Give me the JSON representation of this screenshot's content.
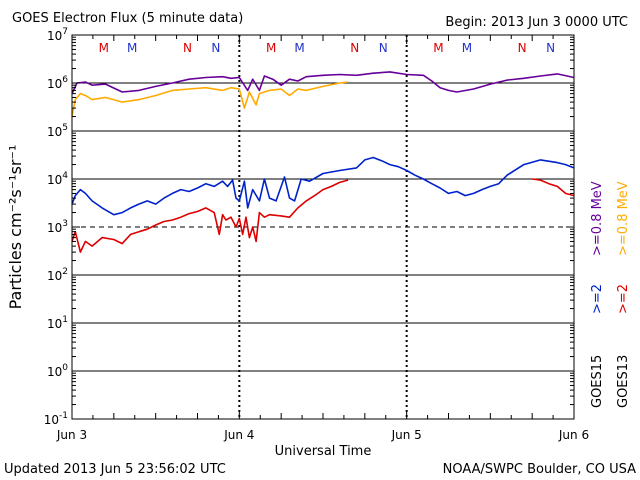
{
  "chart_data": {
    "type": "line",
    "title": "GOES Electron Flux (5 minute data)",
    "begin_label": "Begin: 2013 Jun 3 0000 UTC",
    "xlabel": "Universal Time",
    "ylabel": "Particles cm⁻²s⁻¹sr⁻¹",
    "yscale": "log",
    "ylim": [
      0.1,
      10000000
    ],
    "xlim": [
      0,
      3
    ],
    "x_unit": "days since 2013 Jun 3 0000 UTC",
    "x_tick_labels": [
      {
        "x": 0,
        "label": "Jun 3"
      },
      {
        "x": 1,
        "label": "Jun 4"
      },
      {
        "x": 2,
        "label": "Jun 5"
      },
      {
        "x": 3,
        "label": "Jun 6"
      }
    ],
    "y_tick_labels": [
      {
        "value": 10000000,
        "base": "10",
        "exp": "7"
      },
      {
        "value": 1000000,
        "base": "10",
        "exp": "6"
      },
      {
        "value": 100000,
        "base": "10",
        "exp": "5"
      },
      {
        "value": 10000,
        "base": "10",
        "exp": "4"
      },
      {
        "value": 1000,
        "base": "10",
        "exp": "3"
      },
      {
        "value": 100,
        "base": "10",
        "exp": "2"
      },
      {
        "value": 10,
        "base": "10",
        "exp": "1"
      },
      {
        "value": 1,
        "base": "10",
        "exp": "0"
      },
      {
        "value": 0.1,
        "base": "10",
        "exp": "-1"
      }
    ],
    "solid_gridlines": [
      1000000,
      100000,
      10000,
      100,
      10,
      1
    ],
    "dashed_threshold": 1000,
    "midnight_markers": [
      1,
      2
    ],
    "satellite_markers": [
      {
        "x": 0.19,
        "label": "M",
        "color": "#dd0000"
      },
      {
        "x": 0.36,
        "label": "M",
        "color": "#2233cc"
      },
      {
        "x": 0.69,
        "label": "N",
        "color": "#dd0000"
      },
      {
        "x": 0.86,
        "label": "N",
        "color": "#2233cc"
      },
      {
        "x": 1.19,
        "label": "M",
        "color": "#dd0000"
      },
      {
        "x": 1.36,
        "label": "M",
        "color": "#2233cc"
      },
      {
        "x": 1.69,
        "label": "N",
        "color": "#dd0000"
      },
      {
        "x": 1.86,
        "label": "N",
        "color": "#2233cc"
      },
      {
        "x": 2.19,
        "label": "M",
        "color": "#dd0000"
      },
      {
        "x": 2.36,
        "label": "M",
        "color": "#2233cc"
      },
      {
        "x": 2.69,
        "label": "N",
        "color": "#dd0000"
      },
      {
        "x": 2.86,
        "label": "N",
        "color": "#2233cc"
      }
    ],
    "series": [
      {
        "name": "GOES15 >=0.8 MeV",
        "color": "#660099",
        "points": [
          [
            0,
            600000
          ],
          [
            0.03,
            1000000
          ],
          [
            0.08,
            1050000
          ],
          [
            0.12,
            900000
          ],
          [
            0.2,
            950000
          ],
          [
            0.3,
            650000
          ],
          [
            0.4,
            700000
          ],
          [
            0.5,
            850000
          ],
          [
            0.6,
            1000000
          ],
          [
            0.7,
            1200000
          ],
          [
            0.8,
            1300000
          ],
          [
            0.9,
            1350000
          ],
          [
            0.95,
            1250000
          ],
          [
            1.0,
            1300000
          ],
          [
            1.05,
            700000
          ],
          [
            1.08,
            1200000
          ],
          [
            1.12,
            700000
          ],
          [
            1.15,
            1400000
          ],
          [
            1.2,
            1200000
          ],
          [
            1.25,
            900000
          ],
          [
            1.3,
            1200000
          ],
          [
            1.35,
            1100000
          ],
          [
            1.4,
            1350000
          ],
          [
            1.5,
            1450000
          ],
          [
            1.6,
            1500000
          ],
          [
            1.7,
            1450000
          ],
          [
            1.8,
            1600000
          ],
          [
            1.9,
            1700000
          ],
          [
            2.0,
            1500000
          ],
          [
            2.1,
            1450000
          ],
          [
            2.15,
            1100000
          ],
          [
            2.2,
            800000
          ],
          [
            2.25,
            700000
          ],
          [
            2.3,
            650000
          ],
          [
            2.4,
            750000
          ],
          [
            2.5,
            950000
          ],
          [
            2.6,
            1150000
          ],
          [
            2.7,
            1250000
          ],
          [
            2.8,
            1400000
          ],
          [
            2.9,
            1550000
          ],
          [
            3.0,
            1300000
          ]
        ]
      },
      {
        "name": "GOES13 >=0.8 MeV",
        "color": "#ffaa00",
        "points": [
          [
            0,
            200000
          ],
          [
            0.02,
            450000
          ],
          [
            0.05,
            600000
          ],
          [
            0.08,
            550000
          ],
          [
            0.12,
            450000
          ],
          [
            0.2,
            500000
          ],
          [
            0.3,
            400000
          ],
          [
            0.4,
            450000
          ],
          [
            0.5,
            550000
          ],
          [
            0.6,
            700000
          ],
          [
            0.7,
            750000
          ],
          [
            0.8,
            800000
          ],
          [
            0.9,
            700000
          ],
          [
            0.95,
            800000
          ],
          [
            1.0,
            750000
          ],
          [
            1.03,
            300000
          ],
          [
            1.06,
            650000
          ],
          [
            1.1,
            350000
          ],
          [
            1.12,
            600000
          ],
          [
            1.18,
            700000
          ],
          [
            1.25,
            750000
          ],
          [
            1.3,
            550000
          ],
          [
            1.35,
            750000
          ],
          [
            1.4,
            700000
          ],
          [
            1.5,
            850000
          ],
          [
            1.6,
            1000000
          ],
          [
            1.65,
            1050000
          ]
        ]
      },
      {
        "name": "GOES15 >=2 MeV",
        "color": "#0022cc",
        "points": [
          [
            0,
            3000
          ],
          [
            0.02,
            4500
          ],
          [
            0.05,
            6000
          ],
          [
            0.08,
            5000
          ],
          [
            0.12,
            3500
          ],
          [
            0.18,
            2500
          ],
          [
            0.25,
            1800
          ],
          [
            0.3,
            2000
          ],
          [
            0.35,
            2500
          ],
          [
            0.4,
            3000
          ],
          [
            0.45,
            3500
          ],
          [
            0.5,
            3000
          ],
          [
            0.55,
            4000
          ],
          [
            0.6,
            5000
          ],
          [
            0.65,
            6000
          ],
          [
            0.7,
            5500
          ],
          [
            0.75,
            6500
          ],
          [
            0.8,
            8000
          ],
          [
            0.85,
            7000
          ],
          [
            0.9,
            9000
          ],
          [
            0.93,
            7000
          ],
          [
            0.96,
            9500
          ],
          [
            0.98,
            4000
          ],
          [
            1.0,
            3500
          ],
          [
            1.03,
            9000
          ],
          [
            1.05,
            2500
          ],
          [
            1.08,
            6000
          ],
          [
            1.12,
            3500
          ],
          [
            1.15,
            10000
          ],
          [
            1.18,
            4000
          ],
          [
            1.22,
            3500
          ],
          [
            1.27,
            11000
          ],
          [
            1.3,
            4000
          ],
          [
            1.33,
            3500
          ],
          [
            1.37,
            10000
          ],
          [
            1.42,
            9000
          ],
          [
            1.5,
            13000
          ],
          [
            1.6,
            15000
          ],
          [
            1.7,
            17000
          ],
          [
            1.75,
            25000
          ],
          [
            1.8,
            28000
          ],
          [
            1.85,
            24000
          ],
          [
            1.9,
            20000
          ],
          [
            1.95,
            18000
          ],
          [
            2.0,
            15000
          ],
          [
            2.05,
            12000
          ],
          [
            2.1,
            10000
          ],
          [
            2.15,
            8000
          ],
          [
            2.2,
            6500
          ],
          [
            2.25,
            5000
          ],
          [
            2.3,
            5500
          ],
          [
            2.35,
            4500
          ],
          [
            2.4,
            5000
          ],
          [
            2.45,
            6000
          ],
          [
            2.5,
            7000
          ],
          [
            2.55,
            8000
          ],
          [
            2.6,
            12000
          ],
          [
            2.7,
            20000
          ],
          [
            2.8,
            25000
          ],
          [
            2.9,
            22000
          ],
          [
            2.95,
            20000
          ],
          [
            3.0,
            17000
          ]
        ]
      },
      {
        "name": "GOES13 >=2 MeV",
        "color": "#dd0000",
        "points": [
          [
            0,
            500
          ],
          [
            0.02,
            800
          ],
          [
            0.05,
            300
          ],
          [
            0.08,
            500
          ],
          [
            0.12,
            400
          ],
          [
            0.18,
            600
          ],
          [
            0.25,
            550
          ],
          [
            0.3,
            450
          ],
          [
            0.35,
            700
          ],
          [
            0.4,
            800
          ],
          [
            0.45,
            900
          ],
          [
            0.5,
            1100
          ],
          [
            0.55,
            1300
          ],
          [
            0.6,
            1400
          ],
          [
            0.65,
            1600
          ],
          [
            0.7,
            1900
          ],
          [
            0.75,
            2100
          ],
          [
            0.8,
            2500
          ],
          [
            0.85,
            2000
          ],
          [
            0.88,
            700
          ],
          [
            0.9,
            1800
          ],
          [
            0.92,
            1400
          ],
          [
            0.95,
            1600
          ],
          [
            0.98,
            1000
          ],
          [
            1.0,
            1500
          ],
          [
            1.02,
            700
          ],
          [
            1.04,
            1600
          ],
          [
            1.06,
            600
          ],
          [
            1.08,
            1000
          ],
          [
            1.1,
            500
          ],
          [
            1.12,
            2000
          ],
          [
            1.15,
            1600
          ],
          [
            1.18,
            1800
          ],
          [
            1.25,
            1700
          ],
          [
            1.3,
            1600
          ],
          [
            1.35,
            2500
          ],
          [
            1.4,
            3500
          ],
          [
            1.45,
            4500
          ],
          [
            1.5,
            6000
          ],
          [
            1.55,
            7000
          ],
          [
            1.6,
            8500
          ],
          [
            1.65,
            9500
          ]
        ],
        "segment2": [
          [
            2.75,
            10000
          ],
          [
            2.8,
            9500
          ],
          [
            2.85,
            8000
          ],
          [
            2.9,
            7000
          ],
          [
            2.95,
            5000
          ],
          [
            3.0,
            4500
          ]
        ]
      }
    ],
    "legend": {
      "placement": "right",
      "col1_top": "&gt;=0.8 MeV",
      "entries": [
        {
          "column": "right",
          "satellite": "GOES15",
          "energy_lo": ">=2",
          "energy_hi": ">=0.8 MeV",
          "color_lo": "#0022cc",
          "color_hi": "#660099"
        },
        {
          "column": "far-right",
          "satellite": "GOES13",
          "energy_lo": ">=2",
          "energy_hi": ">=0.8 MeV",
          "color_lo": "#dd0000",
          "color_hi": "#ffaa00"
        }
      ]
    }
  },
  "footer": {
    "updated": "Updated 2013 Jun  5 23:56:02 UTC",
    "credit": "NOAA/SWPC Boulder, CO USA"
  }
}
